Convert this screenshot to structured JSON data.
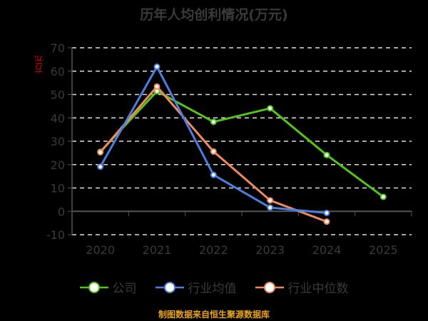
{
  "chart_data": {
    "type": "line",
    "title": "历年人均创利情况(万元)",
    "ylabel": "万元",
    "xlabel": "",
    "categories": [
      "2020",
      "2021",
      "2022",
      "2023",
      "2024",
      "2025"
    ],
    "ylim": [
      -10,
      70
    ],
    "yticks": [
      -10,
      0,
      10,
      20,
      30,
      40,
      50,
      60,
      70
    ],
    "grid": true,
    "legend_position": "bottom",
    "series": [
      {
        "name": "公司",
        "color": "#52c41a",
        "values": [
          25.5,
          51.4,
          38.3,
          44.1,
          24.1,
          6.2
        ]
      },
      {
        "name": "行业均值",
        "color": "#4a7fe0",
        "values": [
          19.1,
          61.9,
          15.6,
          1.6,
          -0.7,
          null
        ]
      },
      {
        "name": "行业中位数",
        "color": "#f08a5d",
        "values": [
          25.3,
          53.4,
          25.6,
          4.7,
          -4.4,
          null
        ]
      }
    ]
  },
  "footer": "制图数据来自恒生聚源数据库"
}
